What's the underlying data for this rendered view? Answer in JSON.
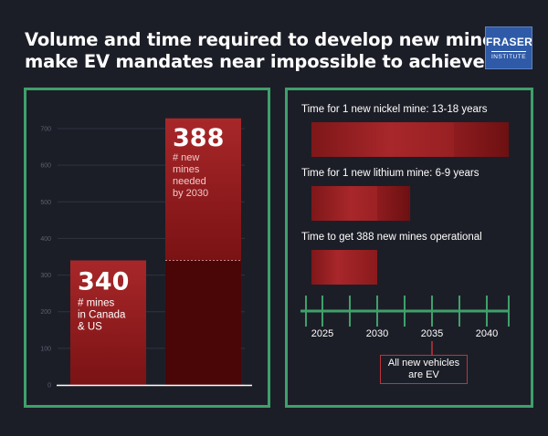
{
  "title": {
    "line1": "Volume and time required to develop new mines",
    "line2": "make EV mandates near impossible to achieve"
  },
  "logo": {
    "line1": "FRASER",
    "line2": "INSTITUTE"
  },
  "colors": {
    "background": "#1c1e27",
    "panel_border": "#3fa06b",
    "bar_red": "#a22428",
    "bar_dark": "#4a0607",
    "axis_tick": "#3fa06b",
    "callout_border": "#c0333a"
  },
  "chart_data": [
    {
      "type": "bar",
      "ylim": [
        0,
        700
      ],
      "yticks": [
        0,
        100,
        200,
        300,
        400,
        500,
        600,
        700
      ],
      "grid": true,
      "bars": [
        {
          "value": 340,
          "label_value": "340",
          "label_lines": [
            "# mines",
            "in Canada",
            "& US"
          ]
        },
        {
          "value": 388,
          "base": 340,
          "label_value": "388",
          "label_lines": [
            "# new",
            "mines",
            "needed",
            "by 2030"
          ]
        }
      ]
    },
    {
      "type": "bar",
      "orientation": "horizontal",
      "xlim": [
        2023,
        2042
      ],
      "xticks": [
        2025,
        2030,
        2035,
        2040
      ],
      "minor_ticks": [
        2023.5,
        2025,
        2027.5,
        2030,
        2032.5,
        2035,
        2037.5,
        2040,
        2042
      ],
      "rows": [
        {
          "label": "Time for 1 new nickel mine: 13-18 years",
          "start": 2024,
          "end": 2042,
          "inner_end": 2037
        },
        {
          "label": "Time for 1 new lithium mine: 6-9 years",
          "start": 2024,
          "end": 2033,
          "inner_end": 2030
        },
        {
          "label": "Time to get 388 new mines operational",
          "start": 2024,
          "end": 2030
        }
      ],
      "annotation": {
        "lines": [
          "All new vehicles",
          "are EV"
        ],
        "x": 2035
      }
    }
  ]
}
